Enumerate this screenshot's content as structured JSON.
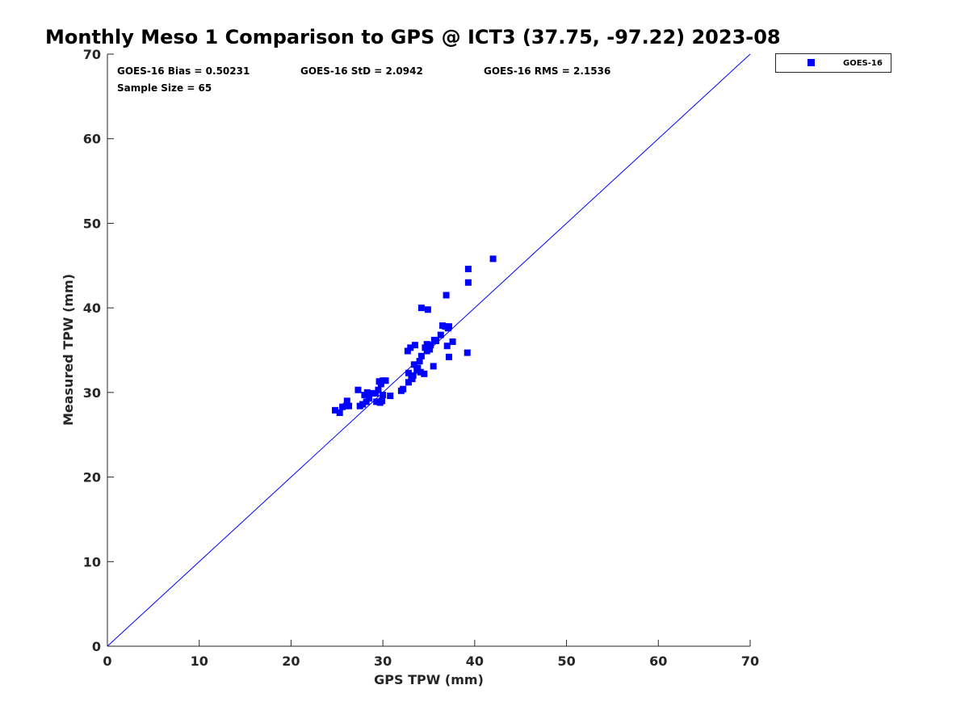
{
  "chart_data": {
    "type": "scatter",
    "title": "Monthly Meso 1 Comparison to GPS @ ICT3 (37.75, -97.22) 2023-08",
    "xlabel": "GPS TPW (mm)",
    "ylabel": "Measured TPW (mm)",
    "xlim": [
      0,
      70
    ],
    "ylim": [
      0,
      70
    ],
    "xticks": [
      "0",
      "10",
      "20",
      "30",
      "40",
      "50",
      "60",
      "70"
    ],
    "yticks": [
      "0",
      "10",
      "20",
      "30",
      "40",
      "50",
      "60",
      "70"
    ],
    "grid": false,
    "legend_position": "outside-top-right",
    "reference_line": {
      "x": [
        0,
        70
      ],
      "y": [
        0,
        70
      ],
      "color": "#0000ff"
    },
    "annotations": {
      "bias": "GOES-16 Bias = 0.50231",
      "std": "GOES-16 StD = 2.0942",
      "rms": "GOES-16 RMS = 2.1536",
      "sample": "Sample Size = 65"
    },
    "series": [
      {
        "name": "GOES-16",
        "color": "#0000ff",
        "marker": "square",
        "points": [
          [
            24.8,
            27.9
          ],
          [
            25.3,
            27.6
          ],
          [
            25.6,
            28.3
          ],
          [
            26.0,
            28.4
          ],
          [
            26.1,
            29.0
          ],
          [
            26.3,
            28.4
          ],
          [
            27.3,
            30.3
          ],
          [
            27.5,
            28.4
          ],
          [
            27.8,
            28.6
          ],
          [
            28.0,
            29.7
          ],
          [
            28.2,
            28.9
          ],
          [
            28.3,
            30.0
          ],
          [
            28.5,
            29.3
          ],
          [
            28.8,
            29.9
          ],
          [
            29.2,
            29.9
          ],
          [
            29.3,
            28.9
          ],
          [
            29.5,
            30.3
          ],
          [
            29.6,
            31.3
          ],
          [
            29.7,
            28.8
          ],
          [
            29.8,
            31.0
          ],
          [
            29.9,
            29.0
          ],
          [
            30.0,
            31.4
          ],
          [
            30.0,
            29.7
          ],
          [
            30.3,
            31.4
          ],
          [
            30.8,
            29.6
          ],
          [
            32.0,
            30.2
          ],
          [
            32.2,
            30.4
          ],
          [
            32.7,
            34.9
          ],
          [
            32.8,
            31.2
          ],
          [
            32.8,
            32.3
          ],
          [
            33.0,
            35.3
          ],
          [
            33.1,
            31.9
          ],
          [
            33.2,
            31.6
          ],
          [
            33.3,
            32.0
          ],
          [
            33.4,
            33.3
          ],
          [
            33.5,
            35.6
          ],
          [
            33.7,
            32.6
          ],
          [
            33.8,
            32.9
          ],
          [
            34.0,
            33.7
          ],
          [
            34.1,
            32.4
          ],
          [
            34.2,
            40.0
          ],
          [
            34.2,
            34.3
          ],
          [
            34.5,
            32.2
          ],
          [
            34.6,
            35.3
          ],
          [
            34.8,
            34.9
          ],
          [
            34.8,
            35.7
          ],
          [
            34.9,
            39.8
          ],
          [
            35.1,
            35.1
          ],
          [
            35.2,
            35.6
          ],
          [
            35.5,
            33.1
          ],
          [
            35.6,
            36.2
          ],
          [
            35.8,
            36.1
          ],
          [
            36.3,
            36.8
          ],
          [
            36.5,
            37.9
          ],
          [
            36.9,
            41.5
          ],
          [
            37.0,
            35.5
          ],
          [
            37.1,
            37.6
          ],
          [
            37.2,
            34.2
          ],
          [
            37.6,
            36.0
          ],
          [
            37.2,
            37.8
          ],
          [
            39.2,
            34.7
          ],
          [
            39.3,
            43.0
          ],
          [
            39.3,
            44.6
          ],
          [
            42.0,
            45.8
          ],
          [
            36.8,
            37.8
          ]
        ]
      }
    ]
  }
}
